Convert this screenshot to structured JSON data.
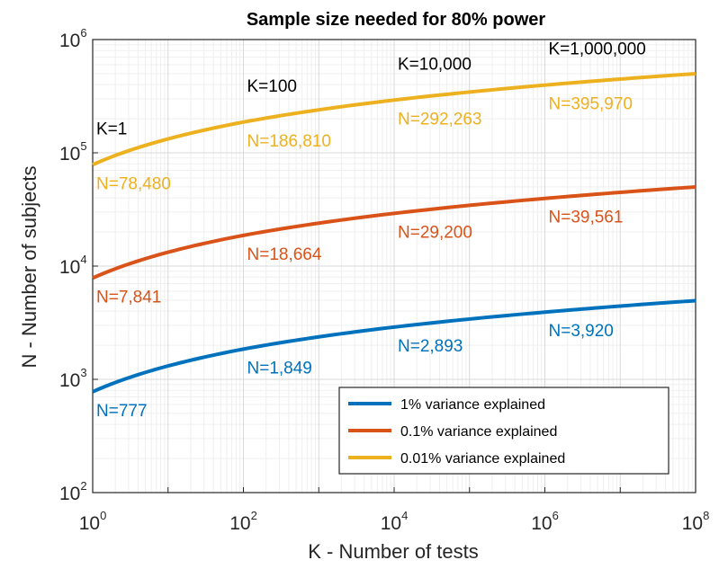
{
  "chart_data": {
    "type": "line",
    "title": "Sample size needed for 80% power",
    "xlabel": "K - Number of tests",
    "ylabel": "N - Number of subjects",
    "xscale": "log",
    "yscale": "log",
    "xlim": [
      1,
      100000000
    ],
    "ylim": [
      100,
      1000000
    ],
    "x_ticks": [
      {
        "base": "10",
        "exp": "0"
      },
      {
        "base": "10",
        "exp": "2"
      },
      {
        "base": "10",
        "exp": "4"
      },
      {
        "base": "10",
        "exp": "6"
      },
      {
        "base": "10",
        "exp": "8"
      }
    ],
    "y_ticks": [
      {
        "base": "10",
        "exp": "2"
      },
      {
        "base": "10",
        "exp": "3"
      },
      {
        "base": "10",
        "exp": "4"
      },
      {
        "base": "10",
        "exp": "5"
      },
      {
        "base": "10",
        "exp": "6"
      }
    ],
    "grid": true,
    "minor_grid": true,
    "legend_position": "bottom-right",
    "series": [
      {
        "name": "1% variance explained",
        "color": "#0072BD",
        "x": [
          1,
          100,
          10000,
          1000000,
          100000000
        ],
        "values": [
          777,
          1849,
          2893,
          3920,
          4950
        ]
      },
      {
        "name": "0.1% variance explained",
        "color": "#D95319",
        "x": [
          1,
          100,
          10000,
          1000000,
          100000000
        ],
        "values": [
          7841,
          18664,
          29200,
          39561,
          49950
        ]
      },
      {
        "name": "0.01% variance explained",
        "color": "#EDB120",
        "x": [
          1,
          100,
          10000,
          1000000,
          100000000
        ],
        "values": [
          78480,
          186810,
          292263,
          395970,
          499500
        ]
      }
    ],
    "k_labels": [
      "K=1",
      "K=100",
      "K=10,000",
      "K=1,000,000"
    ],
    "annotations": [
      [
        "N=777",
        "N=1,849",
        "N=2,893",
        "N=3,920"
      ],
      [
        "N=7,841",
        "N=18,664",
        "N=29,200",
        "N=39,561"
      ],
      [
        "N=78,480",
        "N=186,810",
        "N=292,263",
        "N=395,970"
      ]
    ]
  }
}
